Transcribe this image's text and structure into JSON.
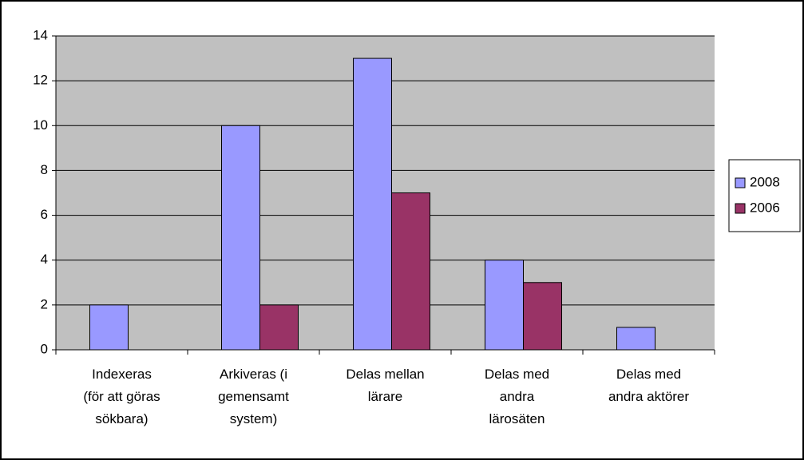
{
  "chart_data": {
    "type": "bar",
    "categories": [
      [
        "Indexeras",
        "(för att göras",
        "sökbara)"
      ],
      [
        "Arkiveras (i",
        "gemensamt",
        "system)"
      ],
      [
        "Delas mellan",
        "lärare"
      ],
      [
        "Delas med",
        "andra",
        "lärosäten"
      ],
      [
        "Delas med",
        "andra aktörer"
      ]
    ],
    "series": [
      {
        "name": "2008",
        "color": "#9999ff",
        "values": [
          2,
          10,
          13,
          4,
          1
        ]
      },
      {
        "name": "2006",
        "color": "#993366",
        "values": [
          0,
          2,
          7,
          3,
          0
        ]
      }
    ],
    "ylim": [
      0,
      14
    ],
    "yticks": [
      0,
      2,
      4,
      6,
      8,
      10,
      12,
      14
    ],
    "grid": true,
    "legend": "right"
  }
}
